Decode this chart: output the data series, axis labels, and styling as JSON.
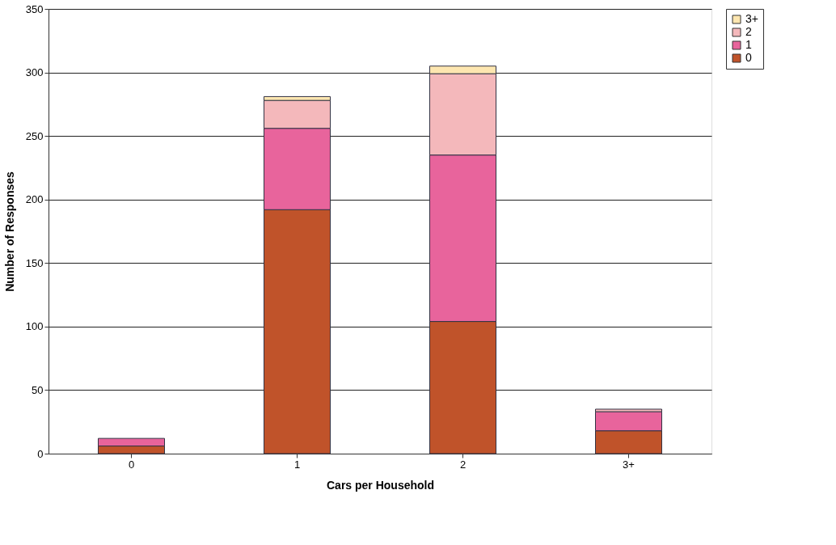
{
  "chart_data": {
    "type": "bar",
    "stacked": true,
    "xlabel": "Cars per Household",
    "ylabel": "Number of Responses",
    "categories": [
      "0",
      "1",
      "2",
      "3+"
    ],
    "series": [
      {
        "name": "0",
        "color": "#c0532a",
        "values": [
          6,
          192,
          104,
          18
        ]
      },
      {
        "name": "1",
        "color": "#e8649c",
        "values": [
          6,
          64,
          131,
          15
        ]
      },
      {
        "name": "2",
        "color": "#f4b8bb",
        "values": [
          null,
          22,
          64,
          2
        ]
      },
      {
        "name": "3+",
        "color": "#fde6b0",
        "values": [
          null,
          3,
          6,
          null
        ]
      }
    ],
    "ylim": [
      0,
      350
    ],
    "yticks": [
      0,
      50,
      100,
      150,
      200,
      250,
      300,
      350
    ],
    "grid": "y",
    "legend": "right"
  }
}
